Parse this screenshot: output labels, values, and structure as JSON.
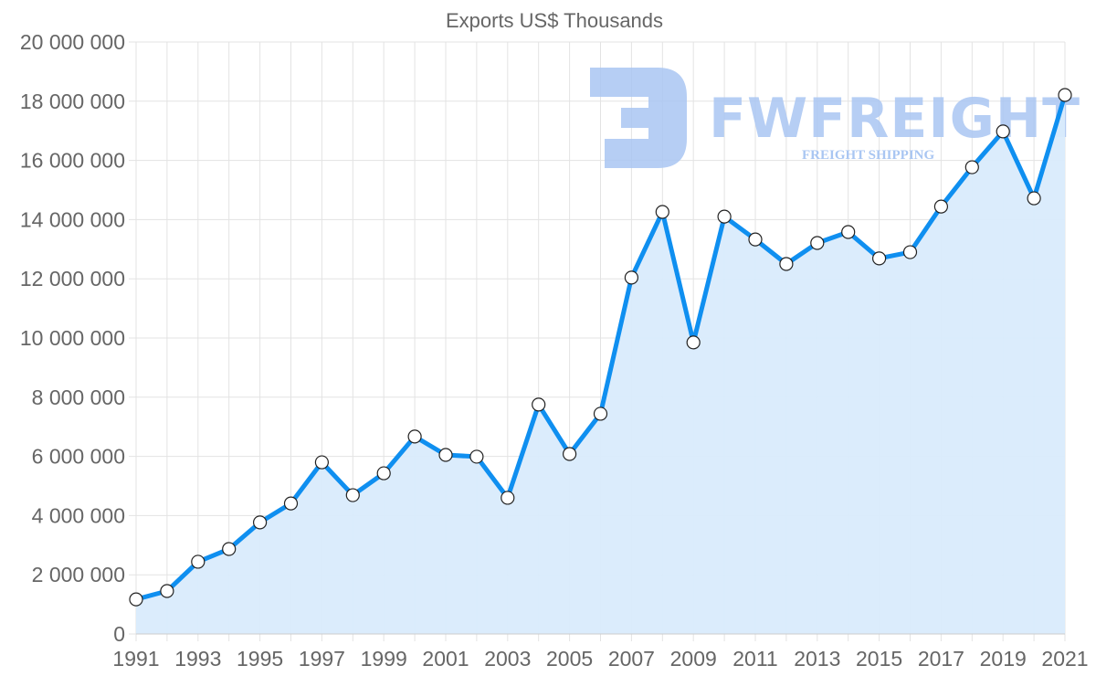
{
  "chart_data": {
    "type": "area",
    "title": "Exports US$ Thousands",
    "xlabel": "",
    "ylabel": "",
    "ylim": [
      0,
      20000000
    ],
    "yticks": [
      0,
      2000000,
      4000000,
      6000000,
      8000000,
      10000000,
      12000000,
      14000000,
      16000000,
      18000000,
      20000000
    ],
    "ytick_labels": [
      "0",
      "2 000 000",
      "4 000 000",
      "6 000 000",
      "8 000 000",
      "10 000 000",
      "12 000 000",
      "14 000 000",
      "16 000 000",
      "18 000 000",
      "20 000 000"
    ],
    "xtick_labels": [
      "1991",
      "1993",
      "1995",
      "1997",
      "1999",
      "2001",
      "2003",
      "2005",
      "2007",
      "2009",
      "2011",
      "2013",
      "2015",
      "2017",
      "2019",
      "2021"
    ],
    "grid": true,
    "legend": "none",
    "categories": [
      "1991",
      "1992",
      "1993",
      "1994",
      "1995",
      "1996",
      "1997",
      "1998",
      "1999",
      "2000",
      "2001",
      "2002",
      "2003",
      "2004",
      "2005",
      "2006",
      "2007",
      "2008",
      "2009",
      "2010",
      "2011",
      "2012",
      "2013",
      "2014",
      "2015",
      "2016",
      "2017",
      "2018",
      "2019",
      "2020",
      "2021"
    ],
    "series": [
      {
        "name": "Exports US$ Thousands",
        "values": [
          1170000,
          1450000,
          2440000,
          2870000,
          3770000,
          4410000,
          5800000,
          4690000,
          5430000,
          6670000,
          6050000,
          5990000,
          4600000,
          7750000,
          6080000,
          7440000,
          12040000,
          14260000,
          9850000,
          14100000,
          13330000,
          12500000,
          13210000,
          13580000,
          12690000,
          12900000,
          14440000,
          15770000,
          16980000,
          14720000,
          18210000
        ],
        "line_color": "#0f8ff0",
        "fill_color": "#d9ebfc",
        "marker_fill": "#ffffff",
        "marker_stroke": "#222222"
      }
    ]
  },
  "watermark": {
    "brand": "FWFREIGHT",
    "tagline": "FREIGHT SHIPPING",
    "color": "#a9c6f2"
  }
}
